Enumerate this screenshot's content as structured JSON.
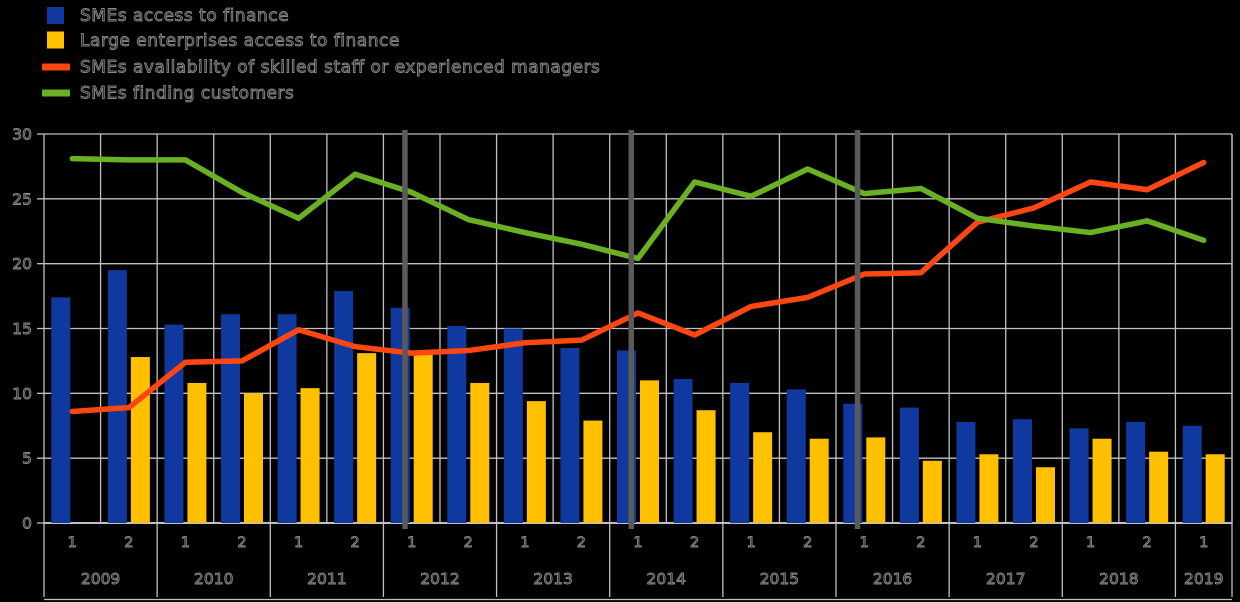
{
  "colors": {
    "background": "#000000",
    "gridline": "#C0C0C0",
    "axis_text": "#8A8A8A",
    "wave_divider": "#5A5A5A"
  },
  "chart_data": {
    "type": "combo bar+line",
    "title": "",
    "xlabel": "",
    "ylabel": "",
    "ylim": [
      0,
      30
    ],
    "yticks": [
      0,
      5,
      10,
      15,
      20,
      25,
      30
    ],
    "grid": true,
    "legend_position": "top-left",
    "x": {
      "years": [
        "2009",
        "2010",
        "2011",
        "2012",
        "2013",
        "2014",
        "2015",
        "2016",
        "2017",
        "2018",
        "2019"
      ],
      "halves_per_year": [
        2,
        2,
        2,
        2,
        2,
        2,
        2,
        2,
        2,
        2,
        1
      ],
      "half_tick_labels": [
        "1",
        "2"
      ]
    },
    "series": [
      {
        "name": "SMEs access to finance",
        "type": "bar",
        "color": "#10399F",
        "values": [
          17.4,
          19.5,
          15.3,
          16.1,
          16.1,
          17.9,
          16.6,
          15.2,
          15.0,
          13.5,
          13.3,
          11.1,
          10.8,
          10.3,
          9.2,
          8.9,
          7.8,
          8.0,
          7.3,
          7.8,
          7.5
        ]
      },
      {
        "name": "Large enterprises access to finance",
        "type": "bar",
        "color": "#FFC000",
        "values": [
          null,
          12.8,
          10.8,
          10.0,
          10.4,
          13.1,
          13.0,
          10.8,
          9.4,
          7.9,
          11.0,
          8.7,
          7.0,
          6.5,
          6.6,
          4.8,
          5.3,
          4.3,
          6.5,
          5.5,
          5.3
        ]
      },
      {
        "name": "SMEs availability of skilled staff or experienced managers",
        "type": "line",
        "color": "#FC4712",
        "values": [
          8.6,
          8.9,
          12.4,
          12.5,
          14.9,
          13.6,
          13.1,
          13.3,
          13.9,
          14.1,
          16.2,
          14.5,
          16.7,
          17.4,
          19.2,
          19.3,
          23.2,
          24.3,
          26.3,
          25.7,
          27.8
        ]
      },
      {
        "name": "SMEs finding customers",
        "type": "line",
        "color": "#69B023",
        "values": [
          28.1,
          28.0,
          28.0,
          25.5,
          23.5,
          26.9,
          25.5,
          23.4,
          22.4,
          21.5,
          20.4,
          26.3,
          25.2,
          27.3,
          25.4,
          25.8,
          23.5,
          22.9,
          22.4,
          23.3,
          21.8
        ]
      }
    ],
    "wave_divider_period_indices": [
      6,
      10,
      14
    ]
  }
}
